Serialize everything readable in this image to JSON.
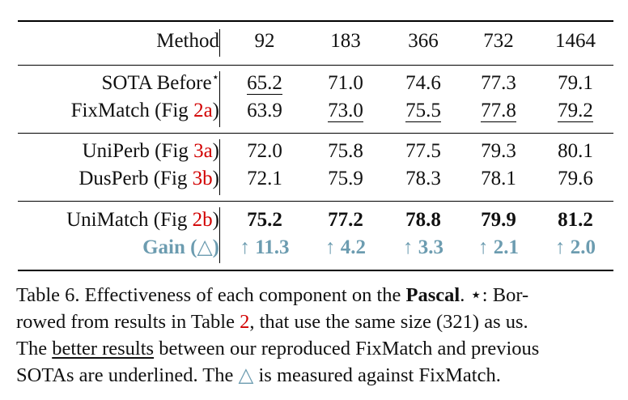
{
  "table": {
    "header": {
      "method": "Method",
      "cols": [
        "92",
        "183",
        "366",
        "732",
        "1464"
      ]
    },
    "groups": [
      [
        {
          "method": "SOTA Before",
          "mark": "⋆",
          "values": [
            "65.2",
            "71.0",
            "74.6",
            "77.3",
            "79.1"
          ],
          "underline": [
            true,
            false,
            false,
            false,
            false
          ]
        },
        {
          "method": "FixMatch (Fig ",
          "ref": "2a",
          "close": ")",
          "values": [
            "63.9",
            "73.0",
            "75.5",
            "77.8",
            "79.2"
          ],
          "underline": [
            false,
            true,
            true,
            true,
            true
          ]
        }
      ],
      [
        {
          "method": "UniPerb (Fig ",
          "ref": "3a",
          "close": ")",
          "values": [
            "72.0",
            "75.8",
            "77.5",
            "79.3",
            "80.1"
          ]
        },
        {
          "method": "DusPerb (Fig ",
          "ref": "3b",
          "close": ")",
          "values": [
            "72.1",
            "75.9",
            "78.3",
            "78.1",
            "79.6"
          ]
        }
      ],
      [
        {
          "method": "UniMatch (Fig ",
          "ref": "2b",
          "close": ")",
          "values": [
            "75.2",
            "77.2",
            "78.8",
            "79.9",
            "81.2"
          ],
          "bold": true
        },
        {
          "method": "Gain (△)",
          "values": [
            "↑ 11.3",
            "↑ 4.2",
            "↑ 3.3",
            "↑ 2.1",
            "↑ 2.0"
          ],
          "gain": true
        }
      ]
    ]
  },
  "caption": {
    "l1a": "Table 6. Effectiveness of each component on the ",
    "l1b": "Pascal",
    "l1c": ". ⋆: Bor-",
    "l2a": "rowed from results in Table ",
    "l2ref": "2",
    "l2b": ", that use the same size (321) as us.",
    "l3a": "The ",
    "l3ul": "better results",
    "l3b": " between our reproduced FixMatch and previous",
    "l4a": "SOTAs are underlined. The ",
    "l4tri": "△",
    "l4b": " is measured against FixMatch."
  },
  "colors": {
    "ref": "#d20000",
    "gain": "#6c9cb0"
  }
}
